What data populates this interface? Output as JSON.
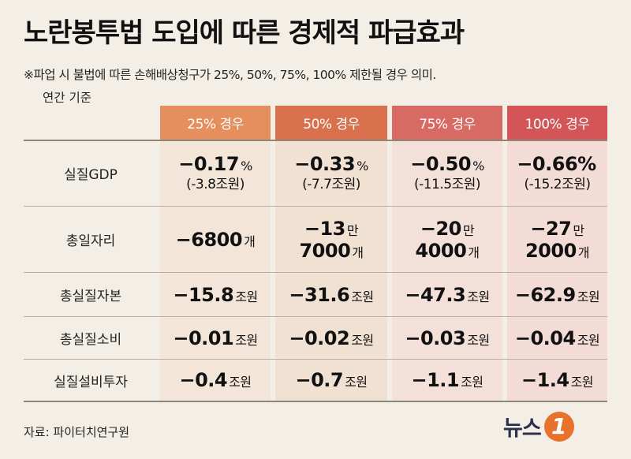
{
  "title": "노란봉투법 도입에 따른 경제적 파급효과",
  "subtitle": "※파업 시 불법에 따른 손해배상청구가 25%, 50%, 75%, 100% 제한될 경우 의미.",
  "subnote": "연간 기준",
  "columns": [
    {
      "label": "25% 경우",
      "header_color": "#e58e5e",
      "bg_color": "#f3e6d8"
    },
    {
      "label": "50% 경우",
      "header_color": "#d9714e",
      "bg_color": "#f1e1d2"
    },
    {
      "label": "75% 경우",
      "header_color": "#d86a64",
      "bg_color": "#f2e0d9"
    },
    {
      "label": "100% 경우",
      "header_color": "#d35557",
      "bg_color": "#f4dcd6"
    }
  ],
  "rows": [
    {
      "label": "실질GDP",
      "cells": [
        {
          "value": "−0.17",
          "unit": "%",
          "sub": "(-3.8조원)"
        },
        {
          "value": "−0.33",
          "unit": "%",
          "sub": "(-7.7조원)"
        },
        {
          "value": "−0.50",
          "unit": "%",
          "sub": "(-11.5조원)"
        },
        {
          "value": "−0.66%",
          "unit": "",
          "sub": "(-15.2조원)"
        }
      ]
    },
    {
      "label": "총일자리",
      "cells": [
        {
          "value": "−6800",
          "unit": "개",
          "value2": "",
          "unit2": ""
        },
        {
          "value": "−13",
          "unit": "만",
          "value2": "7000",
          "unit2": "개"
        },
        {
          "value": "−20",
          "unit": "만",
          "value2": "4000",
          "unit2": "개"
        },
        {
          "value": "−27",
          "unit": "만",
          "value2": "2000",
          "unit2": "개"
        }
      ]
    },
    {
      "label": "총실질자본",
      "cells": [
        {
          "value": "−15.8",
          "unit": "조원"
        },
        {
          "value": "−31.6",
          "unit": "조원"
        },
        {
          "value": "−47.3",
          "unit": "조원"
        },
        {
          "value": "−62.9",
          "unit": "조원"
        }
      ]
    },
    {
      "label": "총실질소비",
      "cells": [
        {
          "value": "−0.01",
          "unit": "조원"
        },
        {
          "value": "−0.02",
          "unit": "조원"
        },
        {
          "value": "−0.03",
          "unit": "조원"
        },
        {
          "value": "−0.04",
          "unit": "조원"
        }
      ]
    },
    {
      "label": "실질설비투자",
      "cells": [
        {
          "value": "−0.4",
          "unit": "조원"
        },
        {
          "value": "−0.7",
          "unit": "조원"
        },
        {
          "value": "−1.1",
          "unit": "조원"
        },
        {
          "value": "−1.4",
          "unit": "조원"
        }
      ]
    }
  ],
  "source": "자료: 파이터치연구원",
  "logo": {
    "text": "뉴스",
    "mark": "1"
  }
}
